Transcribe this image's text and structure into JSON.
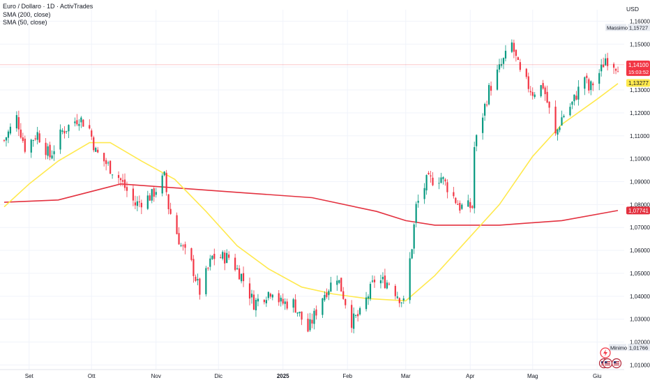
{
  "header": {
    "symbol_line": "Euro / Dollaro · 1D · ActivTrades",
    "indicator_1": "SMA (200, close)",
    "indicator_2": "SMA (50, close)",
    "currency": "USD"
  },
  "colors": {
    "up": "#089981",
    "down": "#f23645",
    "sma200": "#e3313f",
    "sma50": "#ffe94d",
    "last_price_bg": "#f23645",
    "grid": "#f0f3fa",
    "axis_text": "#131722"
  },
  "chart_data": {
    "type": "candlestick",
    "y_unit": "USD",
    "ylim": [
      1.008,
      1.165
    ],
    "y_ticks": [
      "1,16000",
      "1,15000",
      "1,14000",
      "1,13000",
      "1,12000",
      "1,11000",
      "1,10000",
      "1,09000",
      "1,08000",
      "1,07000",
      "1,06000",
      "1,05000",
      "1,04000",
      "1,03000",
      "1,02000",
      "1,01000"
    ],
    "y_tick_values": [
      1.16,
      1.15,
      1.14,
      1.13,
      1.12,
      1.11,
      1.1,
      1.09,
      1.08,
      1.07,
      1.06,
      1.05,
      1.04,
      1.03,
      1.02,
      1.01
    ],
    "x_ticks": [
      "Set",
      "Ott",
      "Nov",
      "Dic",
      "2025",
      "Feb",
      "Mar",
      "Apr",
      "Mag",
      "Giu"
    ],
    "markers": {
      "high_label": "Massimo",
      "high_value": "1,15727",
      "high_price": 1.15727,
      "low_label": "Minimo",
      "low_value": "1,01766",
      "low_price": 1.01766,
      "last_price": "1,14100",
      "last_price_value": 1.141,
      "countdown": "15:03:52",
      "sma50_label": "1,13277",
      "sma50_value": 1.13277,
      "sma200_label": "1,07741",
      "sma200_value": 1.07741
    },
    "anchors": [
      [
        "2024-08-20",
        1.108
      ],
      [
        "2024-08-26",
        1.118
      ],
      [
        "2024-08-30",
        1.105
      ],
      [
        "2024-09-05",
        1.111
      ],
      [
        "2024-09-11",
        1.101
      ],
      [
        "2024-09-17",
        1.112
      ],
      [
        "2024-09-25",
        1.118
      ],
      [
        "2024-09-30",
        1.113
      ],
      [
        "2024-10-03",
        1.103
      ],
      [
        "2024-10-08",
        1.098
      ],
      [
        "2024-10-14",
        1.092
      ],
      [
        "2024-10-22",
        1.08
      ],
      [
        "2024-10-30",
        1.084
      ],
      [
        "2024-11-05",
        1.092
      ],
      [
        "2024-11-07",
        1.079
      ],
      [
        "2024-11-13",
        1.062
      ],
      [
        "2024-11-18",
        1.054
      ],
      [
        "2024-11-22",
        1.042
      ],
      [
        "2024-11-28",
        1.057
      ],
      [
        "2024-12-06",
        1.057
      ],
      [
        "2024-12-12",
        1.049
      ],
      [
        "2024-12-18",
        1.037
      ],
      [
        "2024-12-27",
        1.043
      ],
      [
        "2024-12-31",
        1.037
      ],
      [
        "2025-01-06",
        1.037
      ],
      [
        "2025-01-13",
        1.025
      ],
      [
        "2025-01-20",
        1.04
      ],
      [
        "2025-01-27",
        1.049
      ],
      [
        "2025-02-03",
        1.029
      ],
      [
        "2025-02-07",
        1.032
      ],
      [
        "2025-02-14",
        1.047
      ],
      [
        "2025-02-21",
        1.046
      ],
      [
        "2025-02-28",
        1.037
      ],
      [
        "2025-03-04",
        1.062
      ],
      [
        "2025-03-06",
        1.079
      ],
      [
        "2025-03-11",
        1.09
      ],
      [
        "2025-03-18",
        1.092
      ],
      [
        "2025-03-27",
        1.079
      ],
      [
        "2025-04-02",
        1.079
      ],
      [
        "2025-04-03",
        1.105
      ],
      [
        "2025-04-10",
        1.13
      ],
      [
        "2025-04-21",
        1.15
      ],
      [
        "2025-04-25",
        1.137
      ],
      [
        "2025-05-01",
        1.129
      ],
      [
        "2025-05-06",
        1.132
      ],
      [
        "2025-05-12",
        1.11
      ],
      [
        "2025-05-15",
        1.118
      ],
      [
        "2025-05-20",
        1.124
      ],
      [
        "2025-05-26",
        1.136
      ],
      [
        "2025-05-28",
        1.13
      ],
      [
        "2025-06-03",
        1.139
      ],
      [
        "2025-06-05",
        1.144
      ],
      [
        "2025-06-10",
        1.141
      ],
      [
        "2025-06-11",
        1.141
      ]
    ],
    "sma200": [
      [
        "2024-08-20",
        1.081
      ],
      [
        "2024-09-15",
        1.082
      ],
      [
        "2024-10-15",
        1.089
      ],
      [
        "2024-11-15",
        1.087
      ],
      [
        "2024-12-15",
        1.085
      ],
      [
        "2025-01-15",
        1.083
      ],
      [
        "2025-02-15",
        1.077
      ],
      [
        "2025-03-01",
        1.073
      ],
      [
        "2025-03-15",
        1.071
      ],
      [
        "2025-04-15",
        1.071
      ],
      [
        "2025-05-15",
        1.073
      ],
      [
        "2025-06-11",
        1.0774
      ]
    ],
    "sma50": [
      [
        "2024-08-20",
        1.079
      ],
      [
        "2024-09-01",
        1.089
      ],
      [
        "2024-09-15",
        1.099
      ],
      [
        "2024-09-30",
        1.107
      ],
      [
        "2024-10-10",
        1.107
      ],
      [
        "2024-10-25",
        1.099
      ],
      [
        "2024-11-10",
        1.091
      ],
      [
        "2024-11-25",
        1.077
      ],
      [
        "2024-12-10",
        1.062
      ],
      [
        "2024-12-25",
        1.052
      ],
      [
        "2025-01-10",
        1.044
      ],
      [
        "2025-01-25",
        1.041
      ],
      [
        "2025-02-10",
        1.039
      ],
      [
        "2025-03-01",
        1.038
      ],
      [
        "2025-03-15",
        1.049
      ],
      [
        "2025-04-01",
        1.066
      ],
      [
        "2025-04-15",
        1.08
      ],
      [
        "2025-05-01",
        1.101
      ],
      [
        "2025-05-15",
        1.115
      ],
      [
        "2025-06-01",
        1.126
      ],
      [
        "2025-06-11",
        1.1328
      ]
    ]
  }
}
